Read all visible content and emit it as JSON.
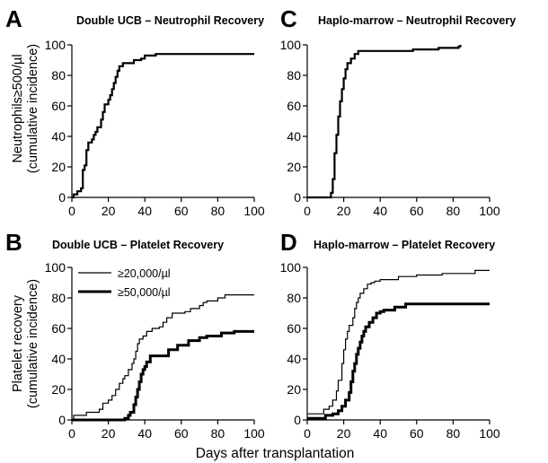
{
  "x_label": "Days after transplantation",
  "y_label_top": [
    "Neutrophils≥500/µl",
    "(cumulative incidence)"
  ],
  "y_label_bottom": [
    "Platelet recovery",
    "(cumulative incidence)"
  ],
  "chart_data": [
    {
      "type": "line",
      "panel": "A",
      "title": "Double UCB – Neutrophil Recovery",
      "xlabel": "Days after transplantation",
      "ylabel": "Neutrophils≥500/µl (cumulative incidence)",
      "xlim": [
        0,
        100
      ],
      "ylim": [
        0,
        100
      ],
      "x_ticks": [
        0,
        20,
        40,
        60,
        80,
        100
      ],
      "y_ticks": [
        0,
        20,
        40,
        60,
        80,
        100
      ],
      "grid": false,
      "series": [
        {
          "line_width": 2.2,
          "color": "#000000",
          "points": [
            [
              0,
              0
            ],
            [
              1,
              2
            ],
            [
              3,
              4
            ],
            [
              5,
              6
            ],
            [
              6,
              18
            ],
            [
              7,
              21
            ],
            [
              8,
              31
            ],
            [
              9,
              36
            ],
            [
              11,
              38
            ],
            [
              12,
              41
            ],
            [
              13,
              43
            ],
            [
              14,
              46
            ],
            [
              16,
              51
            ],
            [
              17,
              56
            ],
            [
              18,
              61
            ],
            [
              20,
              64
            ],
            [
              21,
              67
            ],
            [
              22,
              71
            ],
            [
              23,
              75
            ],
            [
              24,
              79
            ],
            [
              25,
              83
            ],
            [
              26,
              86
            ],
            [
              28,
              88
            ],
            [
              32,
              88
            ],
            [
              34,
              90
            ],
            [
              36,
              90
            ],
            [
              38,
              91
            ],
            [
              40,
              93
            ],
            [
              44,
              93
            ],
            [
              46,
              94
            ],
            [
              100,
              94
            ]
          ]
        }
      ]
    },
    {
      "type": "line",
      "panel": "C",
      "title": "Haplo-marrow – Neutrophil Recovery",
      "xlabel": "Days after transplantation",
      "ylabel": "",
      "xlim": [
        0,
        100
      ],
      "ylim": [
        0,
        100
      ],
      "x_ticks": [
        0,
        20,
        40,
        60,
        80,
        100
      ],
      "y_ticks": [
        0,
        20,
        40,
        60,
        80,
        100
      ],
      "grid": false,
      "series": [
        {
          "line_width": 2.2,
          "color": "#000000",
          "points": [
            [
              0,
              0
            ],
            [
              12,
              0
            ],
            [
              13,
              3
            ],
            [
              14,
              12
            ],
            [
              15,
              29
            ],
            [
              16,
              41
            ],
            [
              17,
              53
            ],
            [
              18,
              63
            ],
            [
              19,
              71
            ],
            [
              20,
              78
            ],
            [
              21,
              84
            ],
            [
              22,
              88
            ],
            [
              24,
              91
            ],
            [
              26,
              94
            ],
            [
              28,
              96
            ],
            [
              56,
              96
            ],
            [
              58,
              97
            ],
            [
              70,
              97
            ],
            [
              72,
              98
            ],
            [
              82,
              98
            ],
            [
              83,
              99
            ],
            [
              84,
              100
            ]
          ]
        }
      ]
    },
    {
      "type": "line",
      "panel": "B",
      "title": "Double UCB – Platelet Recovery",
      "xlabel": "Days after transplantation",
      "ylabel": "Platelet recovery (cumulative incidence)",
      "xlim": [
        0,
        100
      ],
      "ylim": [
        0,
        100
      ],
      "x_ticks": [
        0,
        20,
        40,
        60,
        80,
        100
      ],
      "y_ticks": [
        0,
        20,
        40,
        60,
        80,
        100
      ],
      "grid": false,
      "legend": {
        "placement": "top-left",
        "entries": [
          {
            "label": "≥20,000/µl",
            "line_width": 1.2
          },
          {
            "label": "≥50,000/µl",
            "line_width": 3
          }
        ]
      },
      "series": [
        {
          "name": "≥20,000/µl",
          "line_width": 1.2,
          "color": "#000000",
          "points": [
            [
              0,
              0
            ],
            [
              1,
              3
            ],
            [
              7,
              3
            ],
            [
              8,
              5
            ],
            [
              13,
              5
            ],
            [
              15,
              7
            ],
            [
              17,
              11
            ],
            [
              20,
              13
            ],
            [
              22,
              16
            ],
            [
              24,
              20
            ],
            [
              26,
              24
            ],
            [
              28,
              27
            ],
            [
              29,
              29
            ],
            [
              31,
              33
            ],
            [
              33,
              37
            ],
            [
              34,
              40
            ],
            [
              35,
              45
            ],
            [
              36,
              50
            ],
            [
              37,
              53
            ],
            [
              39,
              55
            ],
            [
              41,
              58
            ],
            [
              44,
              60
            ],
            [
              48,
              61
            ],
            [
              50,
              64
            ],
            [
              52,
              67
            ],
            [
              55,
              70
            ],
            [
              62,
              71
            ],
            [
              65,
              73
            ],
            [
              70,
              75
            ],
            [
              72,
              77
            ],
            [
              74,
              78
            ],
            [
              80,
              80
            ],
            [
              84,
              82
            ],
            [
              100,
              82
            ]
          ]
        },
        {
          "name": "≥50,000/µl",
          "line_width": 3,
          "color": "#000000",
          "points": [
            [
              0,
              0
            ],
            [
              28,
              0
            ],
            [
              29,
              1
            ],
            [
              31,
              3
            ],
            [
              32,
              5
            ],
            [
              34,
              10
            ],
            [
              35,
              15
            ],
            [
              36,
              20
            ],
            [
              37,
              25
            ],
            [
              38,
              30
            ],
            [
              39,
              33
            ],
            [
              40,
              35
            ],
            [
              41,
              38
            ],
            [
              43,
              42
            ],
            [
              51,
              42
            ],
            [
              53,
              46
            ],
            [
              56,
              46
            ],
            [
              58,
              49
            ],
            [
              62,
              49
            ],
            [
              64,
              52
            ],
            [
              68,
              52
            ],
            [
              70,
              54
            ],
            [
              73,
              54
            ],
            [
              74,
              55
            ],
            [
              80,
              55
            ],
            [
              82,
              57
            ],
            [
              88,
              57
            ],
            [
              89,
              58
            ],
            [
              100,
              58
            ]
          ]
        }
      ]
    },
    {
      "type": "line",
      "panel": "D",
      "title": "Haplo-marrow – Platelet Recovery",
      "xlabel": "Days after transplantation",
      "ylabel": "",
      "xlim": [
        0,
        100
      ],
      "ylim": [
        0,
        100
      ],
      "x_ticks": [
        0,
        20,
        40,
        60,
        80,
        100
      ],
      "y_ticks": [
        0,
        20,
        40,
        60,
        80,
        100
      ],
      "grid": false,
      "series": [
        {
          "name": "≥20,000/µl",
          "line_width": 1.2,
          "color": "#000000",
          "points": [
            [
              0,
              4
            ],
            [
              7,
              4
            ],
            [
              9,
              7
            ],
            [
              12,
              9
            ],
            [
              14,
              13
            ],
            [
              16,
              19
            ],
            [
              17,
              26
            ],
            [
              19,
              37
            ],
            [
              20,
              46
            ],
            [
              21,
              53
            ],
            [
              22,
              58
            ],
            [
              23,
              62
            ],
            [
              25,
              67
            ],
            [
              26,
              73
            ],
            [
              27,
              77
            ],
            [
              28,
              80
            ],
            [
              29,
              83
            ],
            [
              31,
              86
            ],
            [
              33,
              89
            ],
            [
              35,
              90
            ],
            [
              37,
              91
            ],
            [
              40,
              92
            ],
            [
              46,
              92
            ],
            [
              50,
              94
            ],
            [
              58,
              94
            ],
            [
              60,
              95
            ],
            [
              70,
              95
            ],
            [
              74,
              96
            ],
            [
              90,
              96
            ],
            [
              92,
              98
            ],
            [
              100,
              98
            ]
          ]
        },
        {
          "name": "≥50,000/µl",
          "line_width": 3,
          "color": "#000000",
          "points": [
            [
              0,
              1
            ],
            [
              8,
              1
            ],
            [
              10,
              3
            ],
            [
              14,
              4
            ],
            [
              17,
              6
            ],
            [
              19,
              9
            ],
            [
              21,
              13
            ],
            [
              23,
              18
            ],
            [
              24,
              25
            ],
            [
              25,
              32
            ],
            [
              26,
              37
            ],
            [
              27,
              43
            ],
            [
              28,
              47
            ],
            [
              29,
              51
            ],
            [
              30,
              55
            ],
            [
              31,
              58
            ],
            [
              32,
              61
            ],
            [
              34,
              64
            ],
            [
              36,
              67
            ],
            [
              38,
              70
            ],
            [
              40,
              71
            ],
            [
              42,
              72
            ],
            [
              46,
              72
            ],
            [
              48,
              74
            ],
            [
              52,
              74
            ],
            [
              54,
              76
            ],
            [
              60,
              76
            ],
            [
              100,
              76
            ]
          ]
        }
      ]
    }
  ]
}
